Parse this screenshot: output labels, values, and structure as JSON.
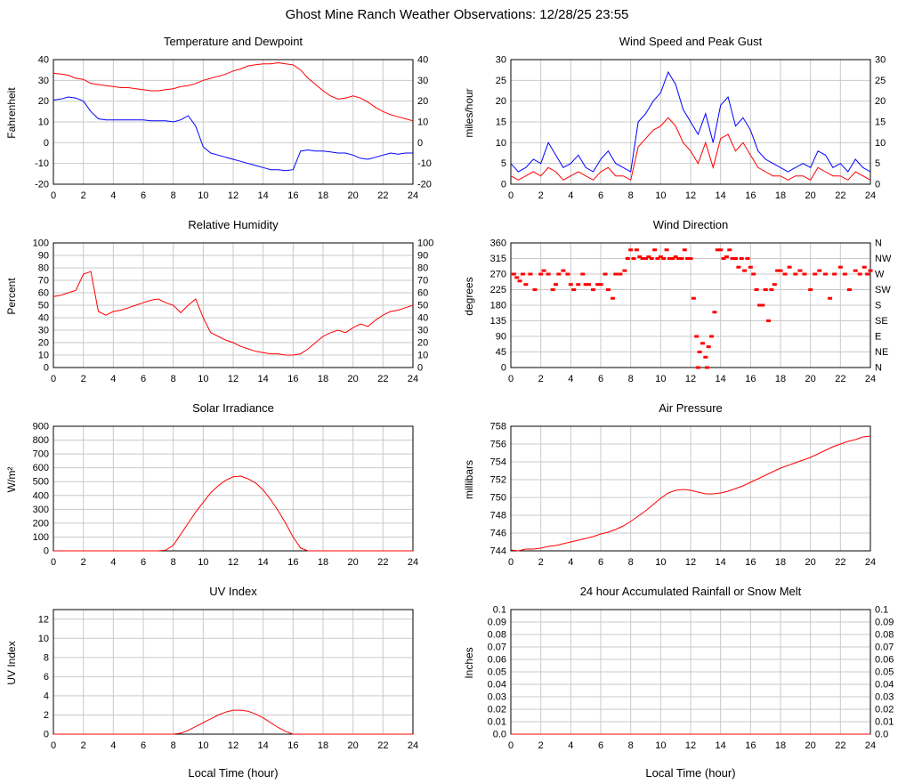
{
  "page_title": "Ghost Mine Ranch Weather Observations: 12/28/25 23:55",
  "x_axis": {
    "label": "Local Time (hour)",
    "min": 0,
    "max": 24,
    "tick_step": 2
  },
  "colors": {
    "red": "#ff0000",
    "blue": "#0000ff",
    "grid": "#c9c9c9",
    "axis": "#000000",
    "background": "#ffffff"
  },
  "chart_data": [
    {
      "type": "line",
      "title": "Temperature and Dewpoint",
      "ylabel": "Fahrenheit",
      "ylim": [
        -20,
        40
      ],
      "yticks": [
        -20,
        -10,
        0,
        10,
        20,
        30,
        40
      ],
      "right_ticks": true,
      "series": [
        {
          "name": "Temperature",
          "color": "red",
          "x_start": 0,
          "x_step": 0.5,
          "y": [
            33.5,
            33,
            32.5,
            31,
            30.5,
            28.5,
            28,
            27.5,
            27,
            26.5,
            26.5,
            26,
            25.5,
            25,
            25,
            25.5,
            26,
            27,
            27.5,
            28.5,
            30,
            31,
            32,
            33,
            34.5,
            35.5,
            37,
            37.5,
            38,
            38,
            38.5,
            38,
            37.5,
            35,
            31,
            28,
            25,
            22.5,
            21,
            21.5,
            22.5,
            21.5,
            19.5,
            17,
            15,
            13.5,
            12.5,
            11.5,
            10.5
          ]
        },
        {
          "name": "Dewpoint",
          "color": "blue",
          "x_start": 0,
          "x_step": 0.5,
          "y": [
            20.5,
            21,
            22,
            21.5,
            20,
            15,
            11.5,
            11,
            11,
            11,
            11,
            11,
            11,
            10.5,
            10.5,
            10.5,
            10,
            11,
            13,
            8,
            -2,
            -5,
            -6,
            -7,
            -8,
            -9,
            -10,
            -11,
            -12,
            -13,
            -13,
            -13.5,
            -13,
            -4,
            -3.5,
            -4,
            -4,
            -4.5,
            -5,
            -5,
            -6,
            -7.5,
            -8,
            -7,
            -6,
            -5,
            -5.5,
            -5,
            -5
          ]
        }
      ]
    },
    {
      "type": "line",
      "title": "Wind Speed and Peak Gust",
      "ylabel": "miles/hour",
      "ylim": [
        0,
        30
      ],
      "yticks": [
        0,
        5,
        10,
        15,
        20,
        25,
        30
      ],
      "right_ticks": true,
      "series": [
        {
          "name": "Peak Gust",
          "color": "blue",
          "x_start": 0,
          "x_step": 0.5,
          "y": [
            5,
            3,
            4,
            6,
            5,
            10,
            7,
            4,
            5,
            7,
            4,
            3,
            6,
            8,
            5,
            4,
            3,
            15,
            17,
            20,
            22,
            27,
            24,
            18,
            15,
            12,
            17,
            10,
            19,
            21,
            14,
            16,
            13,
            8,
            6,
            5,
            4,
            3,
            4,
            5,
            4,
            8,
            7,
            4,
            5,
            3,
            6,
            4,
            3
          ]
        },
        {
          "name": "Wind Speed",
          "color": "red",
          "x_start": 0,
          "x_step": 0.5,
          "y": [
            2,
            1,
            2,
            3,
            2,
            4,
            3,
            1,
            2,
            3,
            2,
            1,
            3,
            4,
            2,
            2,
            1,
            9,
            11,
            13,
            14,
            16,
            14,
            10,
            8,
            5,
            10,
            4,
            11,
            12,
            8,
            10,
            7,
            4,
            3,
            2,
            2,
            1,
            2,
            2,
            1,
            4,
            3,
            2,
            2,
            1,
            3,
            2,
            1
          ]
        }
      ]
    },
    {
      "type": "line",
      "title": "Relative Humidity",
      "ylabel": "Percent",
      "ylim": [
        0,
        100
      ],
      "yticks": [
        0,
        10,
        20,
        30,
        40,
        50,
        60,
        70,
        80,
        90,
        100
      ],
      "right_ticks": true,
      "series": [
        {
          "name": "Relative Humidity",
          "color": "red",
          "x_start": 0,
          "x_step": 0.5,
          "y": [
            57,
            58,
            60,
            62,
            75,
            77,
            45,
            42,
            45,
            46,
            48,
            50,
            52,
            54,
            55,
            52,
            50,
            44,
            50,
            55,
            40,
            28,
            25,
            22,
            20,
            17,
            15,
            13,
            12,
            11,
            11,
            10,
            10,
            11,
            15,
            20,
            25,
            28,
            30,
            28,
            32,
            35,
            33,
            38,
            42,
            45,
            46,
            48,
            50
          ]
        }
      ]
    },
    {
      "type": "scatter",
      "title": "Wind Direction",
      "ylabel": "degrees",
      "ylim": [
        0,
        360
      ],
      "yticks": [
        0,
        45,
        90,
        135,
        180,
        225,
        270,
        315,
        360
      ],
      "right_labels": [
        "N",
        "NE",
        "E",
        "SE",
        "S",
        "SW",
        "W",
        "NW",
        "N"
      ],
      "series": [
        {
          "name": "Wind Direction",
          "color": "red",
          "x": [
            0.2,
            0.4,
            0.6,
            0.8,
            1.0,
            1.3,
            1.6,
            2.0,
            2.2,
            2.5,
            2.8,
            3.0,
            3.2,
            3.5,
            3.8,
            4.0,
            4.2,
            4.5,
            4.8,
            5.0,
            5.2,
            5.5,
            5.8,
            6.0,
            6.3,
            6.5,
            6.8,
            7.0,
            7.3,
            7.6,
            7.8,
            8.0,
            8.2,
            8.4,
            8.6,
            8.8,
            9.0,
            9.2,
            9.4,
            9.6,
            9.8,
            10.0,
            10.2,
            10.4,
            10.6,
            10.8,
            11.0,
            11.2,
            11.4,
            11.6,
            11.8,
            12.0,
            12.2,
            12.4,
            12.5,
            12.6,
            12.8,
            13.0,
            13.1,
            13.2,
            13.4,
            13.6,
            13.8,
            14.0,
            14.2,
            14.4,
            14.6,
            14.8,
            15.0,
            15.2,
            15.4,
            15.6,
            15.8,
            16.0,
            16.2,
            16.4,
            16.6,
            16.8,
            17.0,
            17.2,
            17.4,
            17.6,
            17.8,
            18.0,
            18.3,
            18.6,
            19.0,
            19.3,
            19.6,
            20.0,
            20.3,
            20.6,
            21.0,
            21.3,
            21.6,
            22.0,
            22.3,
            22.6,
            23.0,
            23.3,
            23.6,
            23.8,
            24.0
          ],
          "y": [
            270,
            260,
            250,
            270,
            240,
            270,
            225,
            270,
            280,
            270,
            225,
            240,
            270,
            280,
            270,
            240,
            225,
            240,
            270,
            240,
            240,
            225,
            240,
            240,
            270,
            225,
            200,
            270,
            270,
            280,
            315,
            340,
            315,
            340,
            320,
            315,
            315,
            320,
            315,
            340,
            315,
            320,
            315,
            340,
            315,
            315,
            320,
            315,
            315,
            340,
            315,
            315,
            200,
            90,
            0,
            45,
            70,
            30,
            0,
            60,
            90,
            160,
            340,
            340,
            315,
            320,
            340,
            315,
            315,
            290,
            315,
            280,
            315,
            290,
            270,
            225,
            180,
            180,
            225,
            135,
            225,
            240,
            280,
            280,
            270,
            290,
            270,
            280,
            270,
            225,
            270,
            280,
            270,
            200,
            270,
            290,
            270,
            225,
            280,
            270,
            290,
            270,
            280
          ]
        }
      ]
    },
    {
      "type": "line",
      "title": "Solar Irradiance",
      "ylabel": "W/m²",
      "ylim": [
        0,
        900
      ],
      "yticks": [
        0,
        100,
        200,
        300,
        400,
        500,
        600,
        700,
        800,
        900
      ],
      "right_ticks": false,
      "series": [
        {
          "name": "Solar Irradiance",
          "color": "red",
          "x_start": 0,
          "x_step": 0.5,
          "y": [
            0,
            0,
            0,
            0,
            0,
            0,
            0,
            0,
            0,
            0,
            0,
            0,
            0,
            0,
            0,
            5,
            40,
            120,
            200,
            280,
            350,
            420,
            470,
            510,
            535,
            540,
            520,
            490,
            440,
            370,
            290,
            200,
            100,
            20,
            0,
            0,
            0,
            0,
            0,
            0,
            0,
            0,
            0,
            0,
            0,
            0,
            0,
            0,
            0
          ]
        }
      ]
    },
    {
      "type": "line",
      "title": "Air Pressure",
      "ylabel": "millibars",
      "ylim": [
        744,
        758
      ],
      "yticks": [
        744,
        746,
        748,
        750,
        752,
        754,
        756,
        758
      ],
      "right_ticks": false,
      "series": [
        {
          "name": "Air Pressure",
          "color": "red",
          "x_start": 0,
          "x_step": 0.5,
          "y": [
            744.1,
            744.0,
            744.2,
            744.2,
            744.3,
            744.5,
            744.6,
            744.8,
            745.0,
            745.2,
            745.4,
            745.6,
            745.9,
            746.1,
            746.4,
            746.8,
            747.3,
            747.9,
            748.5,
            749.2,
            749.9,
            750.5,
            750.8,
            750.9,
            750.8,
            750.6,
            750.4,
            750.4,
            750.5,
            750.7,
            751.0,
            751.3,
            751.7,
            752.1,
            752.5,
            752.9,
            753.3,
            753.6,
            753.9,
            754.2,
            754.5,
            754.9,
            755.3,
            755.7,
            756.0,
            756.3,
            756.5,
            756.8,
            756.9
          ]
        }
      ]
    },
    {
      "type": "line",
      "title": "UV Index",
      "ylabel": "UV Index",
      "ylim": [
        0,
        13
      ],
      "yticks": [
        0,
        2,
        4,
        6,
        8,
        10,
        12
      ],
      "right_ticks": false,
      "series": [
        {
          "name": "UV Index",
          "color": "red",
          "x_start": 0,
          "x_step": 0.5,
          "y": [
            0,
            0,
            0,
            0,
            0,
            0,
            0,
            0,
            0,
            0,
            0,
            0,
            0,
            0,
            0,
            0,
            0,
            0.1,
            0.4,
            0.8,
            1.2,
            1.6,
            2.0,
            2.3,
            2.5,
            2.5,
            2.4,
            2.1,
            1.7,
            1.2,
            0.7,
            0.3,
            0,
            0,
            0,
            0,
            0,
            0,
            0,
            0,
            0,
            0,
            0,
            0,
            0,
            0,
            0,
            0,
            0
          ]
        }
      ]
    },
    {
      "type": "line",
      "title": "24 hour Accumulated Rainfall or Snow Melt",
      "ylabel": "Inches",
      "ylim": [
        0,
        0.1
      ],
      "yticks": [
        0,
        0.01,
        0.02,
        0.03,
        0.04,
        0.05,
        0.06,
        0.07,
        0.08,
        0.09,
        0.1
      ],
      "ytick_labels": [
        "0.0",
        "0.01",
        "0.02",
        "0.03",
        "0.04",
        "0.05",
        "0.06",
        "0.07",
        "0.08",
        "0.09",
        "0.1"
      ],
      "right_ticks": true,
      "series": [
        {
          "name": "Rainfall",
          "color": "red",
          "x_start": 0,
          "x_step": 12,
          "y": [
            0,
            0,
            0
          ]
        }
      ]
    }
  ]
}
